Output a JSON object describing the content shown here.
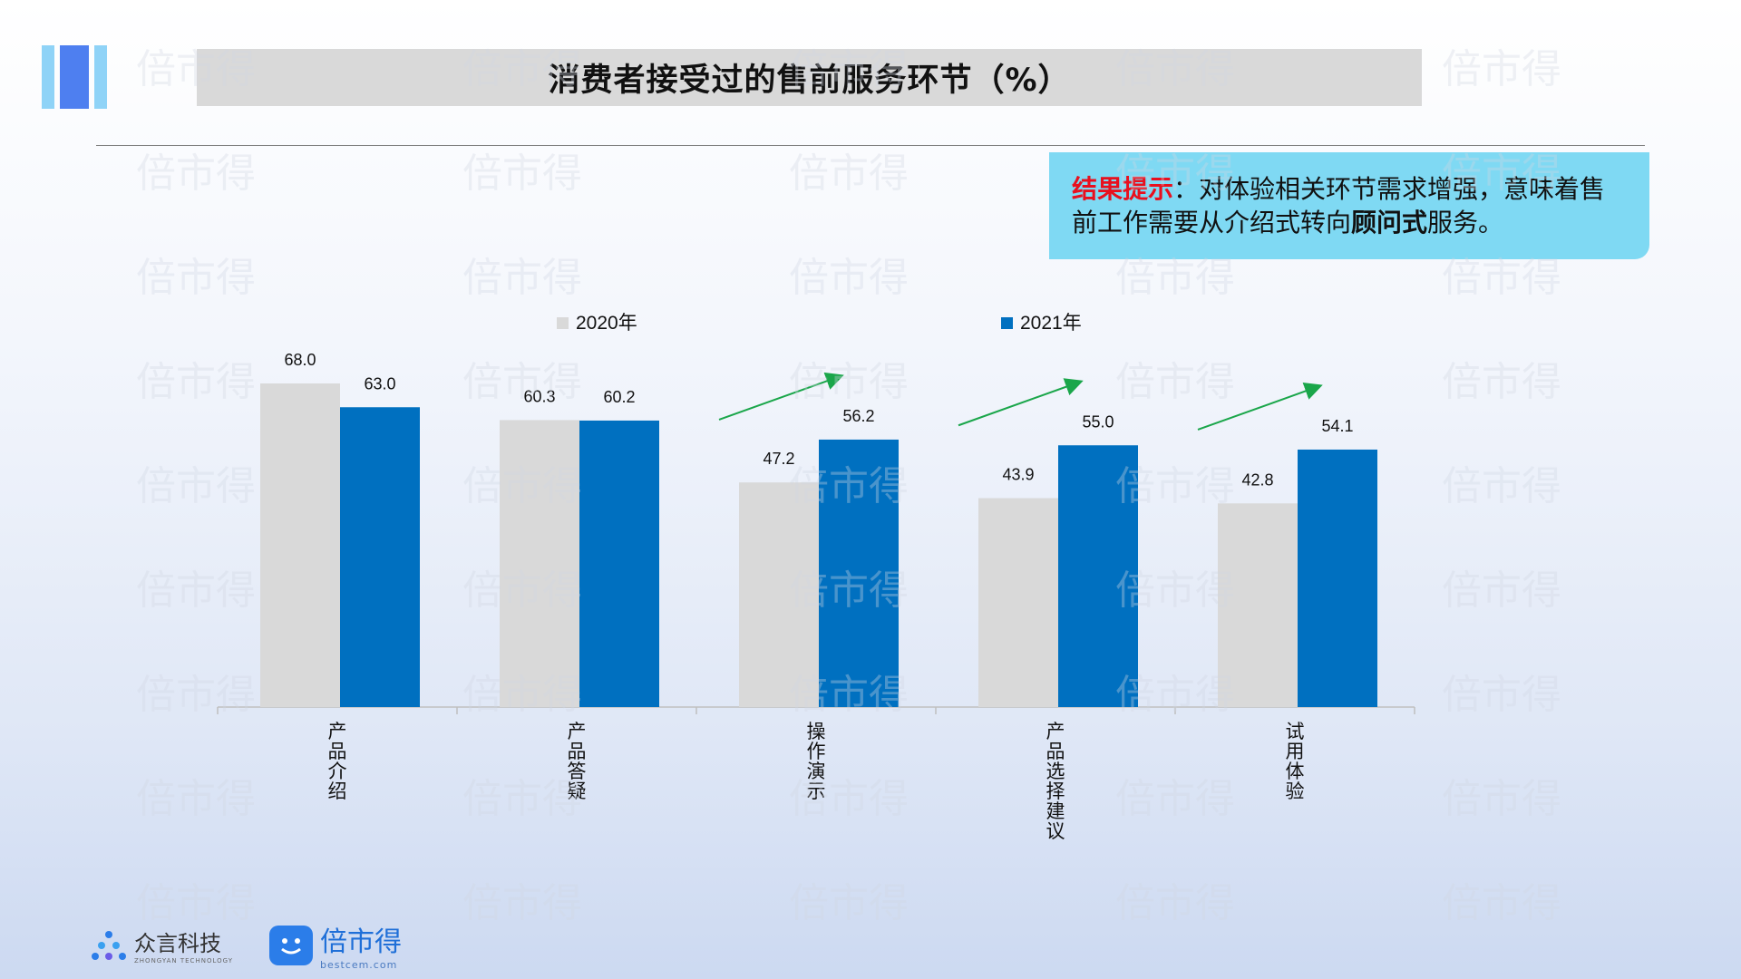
{
  "title": "消费者接受过的售前服务环节（%）",
  "callout": {
    "highlight": "结果提示",
    "sep": "：",
    "text_part1": "对体验相关环节需求增强，意味着售前工作需要从介绍式转向",
    "bold": "顾问式",
    "text_part2": "服务。"
  },
  "chart_data": {
    "type": "bar",
    "categories": [
      "产品介绍",
      "产品答疑",
      "操作演示",
      "产品选择建议",
      "试用体验"
    ],
    "series": [
      {
        "name": "2020年",
        "values": [
          68.0,
          60.3,
          47.2,
          43.9,
          42.8
        ],
        "color": "#d9d9d9"
      },
      {
        "name": "2021年",
        "values": [
          63.0,
          60.2,
          56.2,
          55.0,
          54.1
        ],
        "color": "#0070c0"
      }
    ],
    "ylim": [
      0,
      80
    ],
    "legend_position": "top",
    "grid": false,
    "trend_arrows": [
      "操作演示",
      "产品选择建议",
      "试用体验"
    ],
    "arrow_color": "#1aa64a"
  },
  "footer": {
    "logo1_name": "众言科技",
    "logo1_sub": "ZHONGYAN TECHNOLOGY",
    "logo2_name": "倍市得",
    "logo2_sub": "bestcem.com"
  },
  "watermark": "倍市得"
}
